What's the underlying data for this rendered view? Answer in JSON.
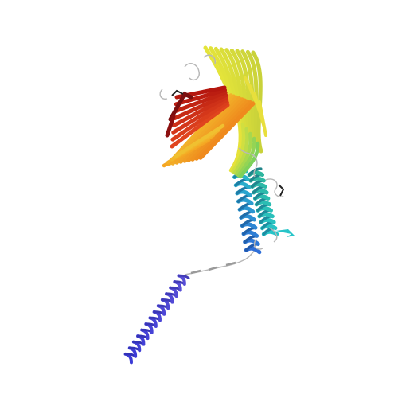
{
  "scene": {
    "background": "#ffffff",
    "subject": "protein-ribbon-structure",
    "color_scheme": "rainbow-n-to-c",
    "palette": {
      "n_terminus": "#3b3bd6",
      "blue": "#2f6fd8",
      "cyan": "#27c4c8",
      "green": "#7fd15a",
      "yellow": "#e6e23a",
      "orange": "#f39a1f",
      "red": "#d9261c",
      "c_terminus": "#7a0f0f",
      "coil": "#b8b8b8"
    }
  }
}
